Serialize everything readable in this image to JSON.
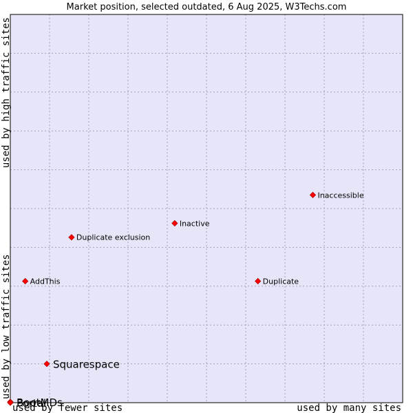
{
  "chart_data": {
    "type": "scatter",
    "title": "Market position, selected outdated, 6 Aug 2025, W3Techs.com",
    "xlabel_left": "used by fewer sites",
    "xlabel_right": "used by many sites",
    "ylabel_bottom": "used by low traffic sites",
    "ylabel_top": "used by high traffic sites",
    "xlim": [
      0,
      100
    ],
    "ylim": [
      0,
      100
    ],
    "grid": true,
    "colors": {
      "plot_bg": "#e6e6f8",
      "grid": "#a0a0b8",
      "border": "#000000",
      "point": "#ff0000"
    },
    "points": [
      {
        "label": "Inaccessible",
        "x": 77.1,
        "y": 53.5,
        "size": "small"
      },
      {
        "label": "Inactive",
        "x": 41.9,
        "y": 46.2,
        "size": "small"
      },
      {
        "label": "Duplicate exclusion",
        "x": 15.6,
        "y": 42.6,
        "size": "small"
      },
      {
        "label": "AddThis",
        "x": 3.8,
        "y": 31.3,
        "size": "small"
      },
      {
        "label": "Duplicate",
        "x": 63.1,
        "y": 31.3,
        "size": "small"
      },
      {
        "label": "Squarespace",
        "x": 9.3,
        "y": 10.0,
        "size": "large"
      },
      {
        "label": "BootMDs",
        "x": 0.0,
        "y": 0.2,
        "size": "large"
      },
      {
        "label": "Portal",
        "x": 0.0,
        "y": 0.0,
        "size": "large"
      }
    ]
  }
}
